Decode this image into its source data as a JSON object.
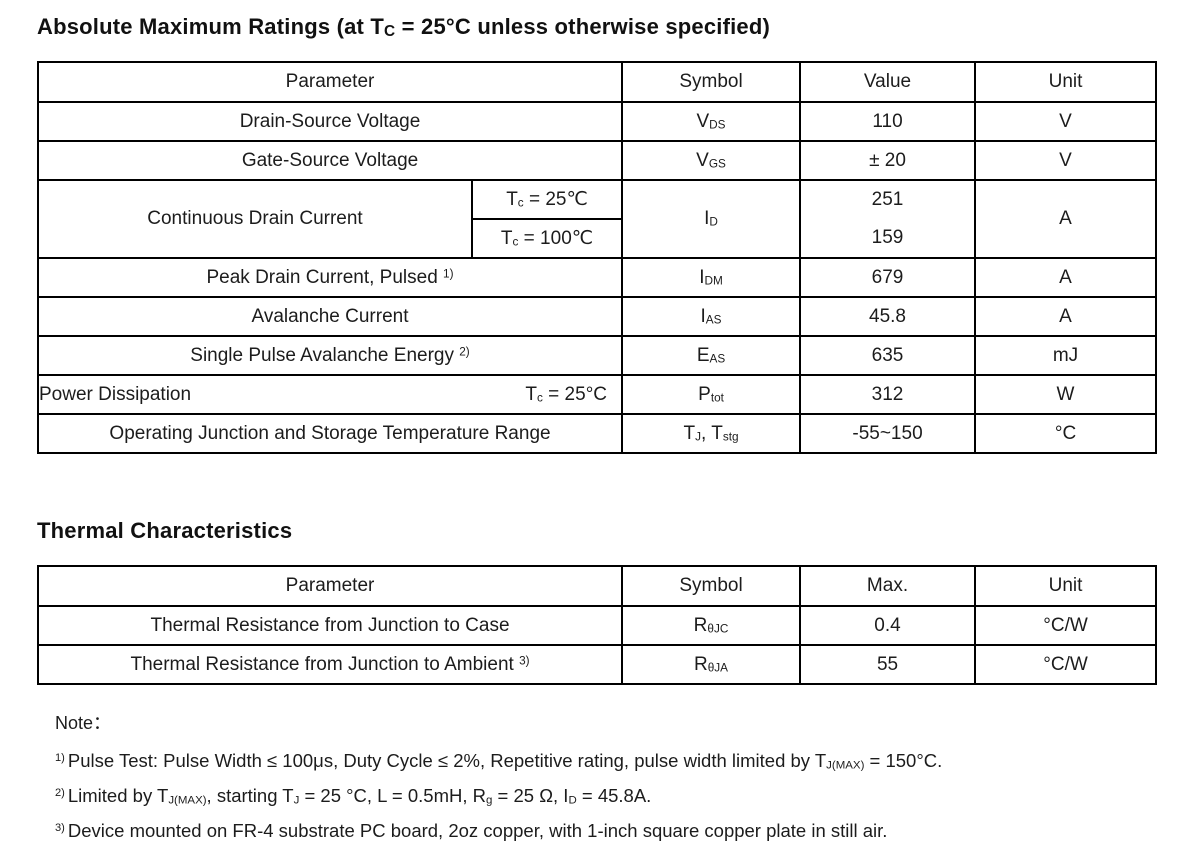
{
  "abs": {
    "title": [
      {
        "t": "Absolute Maximum Ratings (at T"
      },
      {
        "t": "C",
        "s": "sub"
      },
      {
        "t": " = 25°C unless otherwise specified)"
      }
    ],
    "headers": [
      "Parameter",
      "Symbol",
      "Value",
      "Unit"
    ],
    "rows": [
      {
        "param": [
          {
            "t": "Drain-Source Voltage"
          }
        ],
        "symbol": [
          {
            "t": "V"
          },
          {
            "t": "DS",
            "s": "sub"
          }
        ],
        "value": "110",
        "unit": "V"
      },
      {
        "param": [
          {
            "t": "Gate-Source Voltage"
          }
        ],
        "symbol": [
          {
            "t": "V"
          },
          {
            "t": "GS",
            "s": "sub"
          }
        ],
        "value": "± 20",
        "unit": "V"
      },
      {
        "param": [
          {
            "t": "Continuous Drain Current"
          }
        ],
        "cond1": [
          {
            "t": "T"
          },
          {
            "t": "c",
            "s": "sub"
          },
          {
            "t": " = 25℃"
          }
        ],
        "cond2": [
          {
            "t": "T"
          },
          {
            "t": "c",
            "s": "sub"
          },
          {
            "t": " = 100℃"
          }
        ],
        "symbol": [
          {
            "t": "I"
          },
          {
            "t": "D",
            "s": "sub"
          }
        ],
        "value1": "251",
        "value2": "159",
        "unit": "A"
      },
      {
        "param": [
          {
            "t": "Peak Drain Current, Pulsed "
          },
          {
            "t": "1)",
            "s": "sup"
          }
        ],
        "symbol": [
          {
            "t": "I"
          },
          {
            "t": "DM",
            "s": "sub"
          }
        ],
        "value": "679",
        "unit": "A"
      },
      {
        "param": [
          {
            "t": "Avalanche Current"
          }
        ],
        "symbol": [
          {
            "t": "I"
          },
          {
            "t": "AS",
            "s": "sub"
          }
        ],
        "value": "45.8",
        "unit": "A"
      },
      {
        "param": [
          {
            "t": "Single Pulse Avalanche Energy "
          },
          {
            "t": "2)",
            "s": "sup"
          }
        ],
        "symbol": [
          {
            "t": "E"
          },
          {
            "t": "AS",
            "s": "sub"
          }
        ],
        "value": "635",
        "unit": "mJ"
      },
      {
        "param": [
          {
            "t": "Power Dissipation"
          }
        ],
        "cond": [
          {
            "t": "T"
          },
          {
            "t": "c",
            "s": "sub"
          },
          {
            "t": " = 25°C"
          }
        ],
        "symbol": [
          {
            "t": "P"
          },
          {
            "t": "tot",
            "s": "sub"
          }
        ],
        "value": "312",
        "unit": "W"
      },
      {
        "param": [
          {
            "t": "Operating Junction and Storage Temperature Range"
          }
        ],
        "symbol": [
          {
            "t": "T"
          },
          {
            "t": "J",
            "s": "sub"
          },
          {
            "t": ", T"
          },
          {
            "t": "stg",
            "s": "sub"
          }
        ],
        "value": "-55~150",
        "unit": "°C"
      }
    ]
  },
  "thermal": {
    "title": "Thermal Characteristics",
    "headers": [
      "Parameter",
      "Symbol",
      "Max.",
      "Unit"
    ],
    "rows": [
      {
        "param": [
          {
            "t": "Thermal Resistance from Junction to Case"
          }
        ],
        "symbol": [
          {
            "t": "R"
          },
          {
            "t": "θJC",
            "s": "sub"
          }
        ],
        "value": "0.4",
        "unit": "°C/W"
      },
      {
        "param": [
          {
            "t": "Thermal Resistance from Junction to Ambient "
          },
          {
            "t": "3)",
            "s": "sup"
          }
        ],
        "symbol": [
          {
            "t": "R"
          },
          {
            "t": "θJA",
            "s": "sub"
          }
        ],
        "value": "55",
        "unit": "°C/W"
      }
    ]
  },
  "notes": {
    "label": "Note：",
    "items": [
      [
        {
          "t": "1)",
          "s": "sup"
        },
        {
          "t": "Pulse Test: Pulse Width ≤ 100μs, Duty Cycle ≤ 2%, Repetitive rating, pulse width limited by T"
        },
        {
          "t": "J(MAX)",
          "s": "sub"
        },
        {
          "t": " = 150°C."
        }
      ],
      [
        {
          "t": "2)",
          "s": "sup"
        },
        {
          "t": "Limited by T"
        },
        {
          "t": "J(MAX)",
          "s": "sub"
        },
        {
          "t": ", starting T"
        },
        {
          "t": "J",
          "s": "sub"
        },
        {
          "t": " = 25 °C, L = 0.5mH, R"
        },
        {
          "t": "g",
          "s": "sub"
        },
        {
          "t": " = 25 Ω, I"
        },
        {
          "t": "D",
          "s": "sub"
        },
        {
          "t": " = 45.8A."
        }
      ],
      [
        {
          "t": "3)",
          "s": "sup"
        },
        {
          "t": "Device mounted on FR-4 substrate PC board, 2oz copper, with 1-inch square copper plate in still air."
        }
      ]
    ]
  }
}
